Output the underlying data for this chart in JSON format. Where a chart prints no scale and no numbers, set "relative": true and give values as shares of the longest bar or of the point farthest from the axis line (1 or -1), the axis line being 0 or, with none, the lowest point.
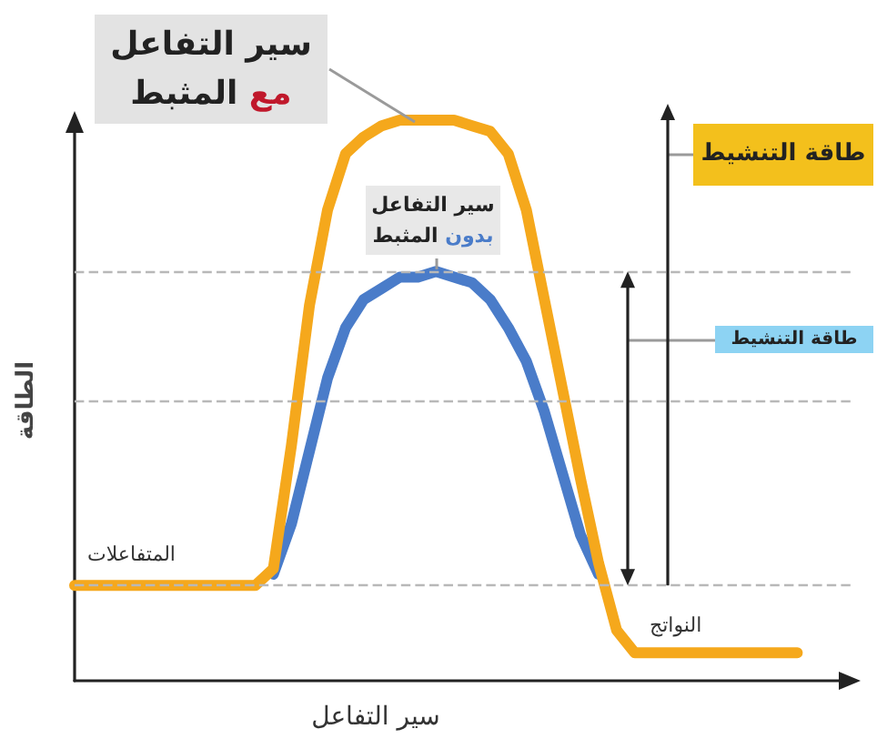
{
  "chart_data": {
    "type": "line",
    "relative": true,
    "xlabel": "سير التفاعل",
    "ylabel": "الطاقة",
    "categories": [
      null,
      null,
      null,
      null,
      null,
      null,
      null,
      null,
      null,
      null,
      null,
      null,
      null,
      null,
      null,
      null,
      null,
      null,
      null,
      null,
      null,
      null,
      null,
      null,
      null,
      null,
      null,
      null,
      null,
      null,
      null,
      null,
      null,
      null,
      null,
      null,
      null,
      null,
      null,
      null,
      null,
      null,
      null,
      null
    ],
    "series": [
      {
        "name": "سير التفاعل مع المثبط",
        "color": "#f5a81c",
        "values": [
          0.17,
          0.17,
          0.17,
          0.17,
          0.17,
          0.17,
          0.17,
          0.17,
          0.17,
          0.17,
          0.17,
          0.2,
          0.42,
          0.67,
          0.84,
          0.94,
          0.97,
          0.99,
          1.0,
          1.0,
          1.0,
          1.0,
          0.99,
          0.98,
          0.94,
          0.84,
          0.68,
          0.52,
          0.36,
          0.21,
          0.09,
          0.05,
          0.05,
          0.05,
          0.05,
          0.05,
          0.05,
          0.05,
          0.05,
          0.05,
          0.05,
          null,
          null,
          null
        ]
      },
      {
        "name": "سير التفاعل بدون المثبط",
        "color": "#4a7cc9",
        "values": [
          null,
          null,
          null,
          null,
          null,
          null,
          null,
          null,
          null,
          null,
          null,
          0.19,
          0.28,
          0.41,
          0.54,
          0.63,
          0.68,
          0.7,
          0.72,
          0.72,
          0.73,
          0.72,
          0.71,
          0.68,
          0.63,
          0.57,
          0.48,
          0.37,
          0.26,
          0.19,
          null,
          null,
          null,
          null,
          null,
          null,
          null,
          null,
          null,
          null,
          null,
          null,
          null,
          null
        ]
      }
    ],
    "ref_lines": [
      {
        "axis": "y",
        "value": 0.73,
        "color": "#b8b8b8",
        "line_style": "dashed"
      },
      {
        "axis": "y",
        "value": 0.5,
        "color": "#b8b8b8",
        "line_style": "dashed"
      },
      {
        "axis": "y",
        "value": 0.17,
        "color": "#b8b8b8",
        "line_style": "dashed"
      }
    ],
    "annotations": [
      "المتفاعلات",
      "النواتج",
      "طاقة التنشيط",
      "طاقة التنشيط"
    ],
    "marker": "none",
    "line_style": "solid"
  }
}
